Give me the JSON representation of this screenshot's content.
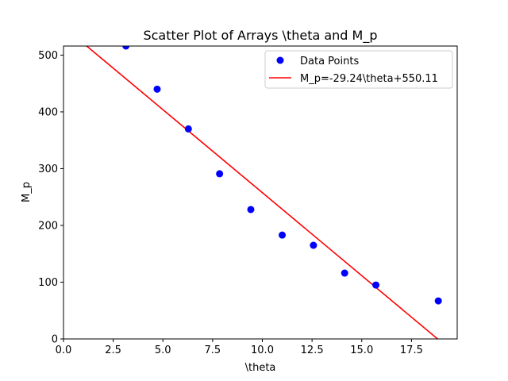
{
  "chart_data": {
    "type": "scatter",
    "title": "Scatter Plot of Arrays \\theta and M_p",
    "xlabel": "\\theta",
    "ylabel": "M_p",
    "xlim": [
      0,
      19.8
    ],
    "ylim": [
      0,
      516
    ],
    "xticks": [
      0.0,
      2.5,
      5.0,
      7.5,
      10.0,
      12.5,
      15.0,
      17.5
    ],
    "xtick_labels": [
      "0.0",
      "2.5",
      "5.0",
      "7.5",
      "10.0",
      "12.5",
      "15.0",
      "17.5"
    ],
    "yticks": [
      0,
      100,
      200,
      300,
      400,
      500
    ],
    "ytick_labels": [
      "0",
      "100",
      "200",
      "300",
      "400",
      "500"
    ],
    "grid": false,
    "legend_position": "top-right",
    "series": [
      {
        "name": "Data Points",
        "kind": "scatter",
        "color": "#0000ff",
        "x": [
          3.14,
          4.71,
          6.28,
          7.85,
          9.42,
          11.0,
          12.57,
          14.14,
          15.71,
          18.85
        ],
        "y": [
          516,
          440,
          370,
          291,
          228,
          183,
          165,
          116,
          95,
          67
        ]
      },
      {
        "name": "M_p=-29.24\\theta+550.11",
        "kind": "line",
        "color": "#ff0000",
        "slope": -29.24,
        "intercept": 550.11
      }
    ]
  }
}
